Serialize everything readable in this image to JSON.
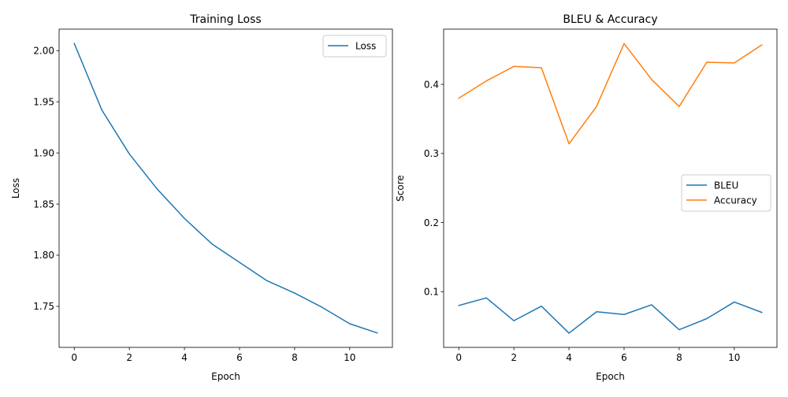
{
  "chart_data": [
    {
      "type": "line",
      "title": "Training Loss",
      "xlabel": "Epoch",
      "ylabel": "Loss",
      "x": [
        0,
        1,
        2,
        3,
        4,
        5,
        6,
        7,
        8,
        9,
        10,
        11
      ],
      "series": [
        {
          "name": "Loss",
          "color": "#1f77b4",
          "values": [
            2.007,
            1.942,
            1.899,
            1.865,
            1.836,
            1.811,
            1.793,
            1.775,
            1.763,
            1.749,
            1.733,
            1.724
          ]
        }
      ],
      "xlim": [
        -0.55,
        11.55
      ],
      "ylim": [
        1.7099,
        2.021
      ],
      "xticks": [
        0,
        2,
        4,
        6,
        8,
        10
      ],
      "xtick_labels": [
        "0",
        "2",
        "4",
        "6",
        "8",
        "10"
      ],
      "yticks": [
        1.75,
        1.8,
        1.85,
        1.9,
        1.95,
        2.0
      ],
      "ytick_labels": [
        "1.75",
        "1.80",
        "1.85",
        "1.90",
        "1.95",
        "2.00"
      ],
      "legend": "top-right",
      "grid": false
    },
    {
      "type": "line",
      "title": "BLEU & Accuracy",
      "xlabel": "Epoch",
      "ylabel": "Score",
      "x": [
        0,
        1,
        2,
        3,
        4,
        5,
        6,
        7,
        8,
        9,
        10,
        11
      ],
      "series": [
        {
          "name": "BLEU",
          "color": "#1f77b4",
          "values": [
            0.08,
            0.091,
            0.058,
            0.079,
            0.04,
            0.071,
            0.067,
            0.081,
            0.045,
            0.061,
            0.085,
            0.07
          ]
        },
        {
          "name": "Accuracy",
          "color": "#ff7f0e",
          "values": [
            0.38,
            0.405,
            0.426,
            0.424,
            0.314,
            0.368,
            0.459,
            0.407,
            0.368,
            0.432,
            0.431,
            0.457
          ]
        }
      ],
      "xlim": [
        -0.55,
        11.55
      ],
      "ylim": [
        0.0194,
        0.4799
      ],
      "xticks": [
        0,
        2,
        4,
        6,
        8,
        10
      ],
      "xtick_labels": [
        "0",
        "2",
        "4",
        "6",
        "8",
        "10"
      ],
      "yticks": [
        0.1,
        0.2,
        0.3,
        0.4
      ],
      "ytick_labels": [
        "0.1",
        "0.2",
        "0.3",
        "0.4"
      ],
      "legend": "center-right",
      "grid": false
    }
  ]
}
